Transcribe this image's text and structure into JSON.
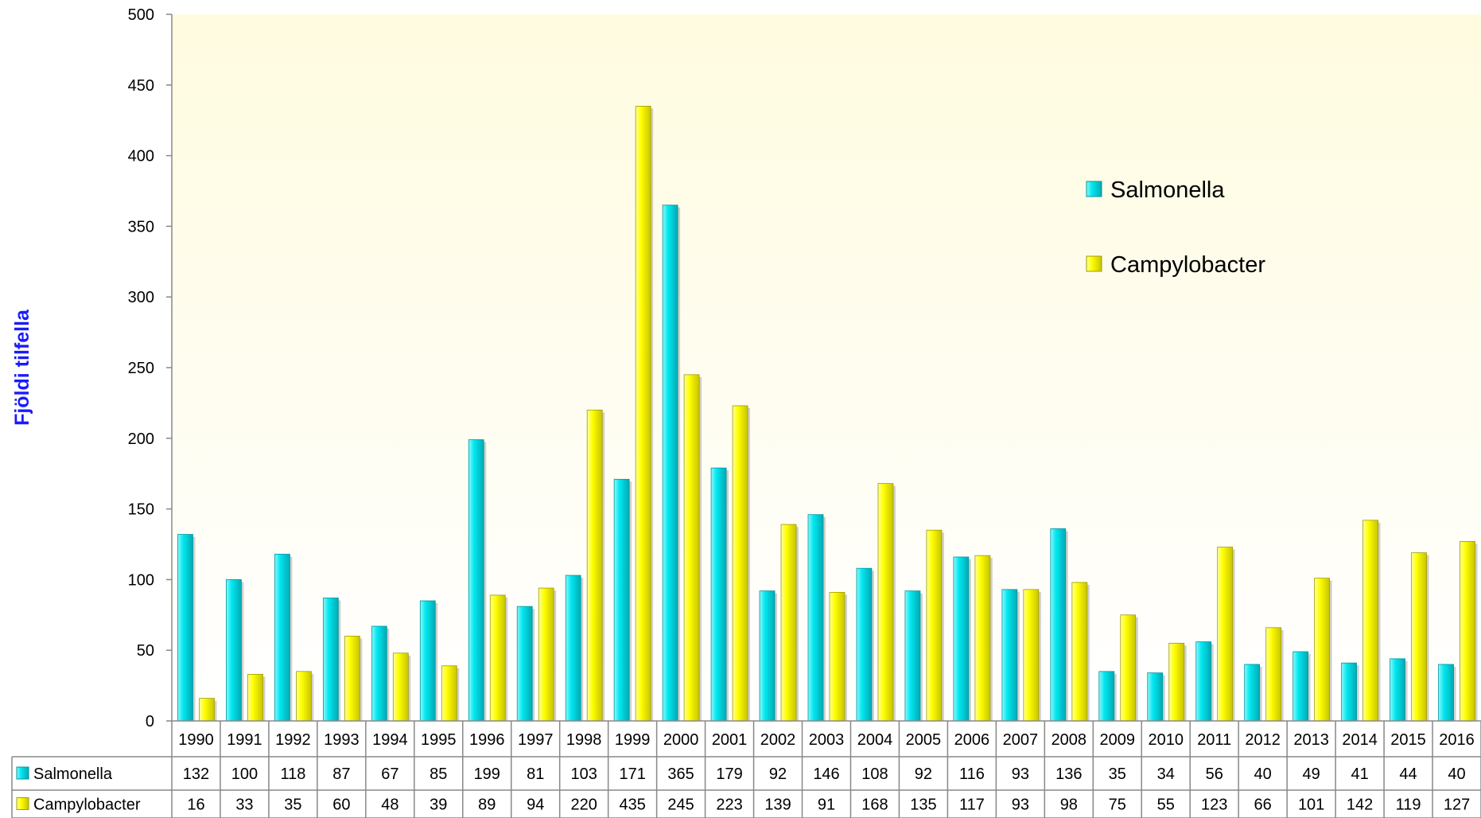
{
  "chart_data": {
    "type": "bar",
    "ylabel": "Fjöldi tilfella",
    "ylim": [
      0,
      500
    ],
    "yticks": [
      0,
      50,
      100,
      150,
      200,
      250,
      300,
      350,
      400,
      450,
      500
    ],
    "categories": [
      "1990",
      "1991",
      "1992",
      "1993",
      "1994",
      "1995",
      "1996",
      "1997",
      "1998",
      "1999",
      "2000",
      "2001",
      "2002",
      "2003",
      "2004",
      "2005",
      "2006",
      "2007",
      "2008",
      "2009",
      "2010",
      "2011",
      "2012",
      "2013",
      "2014",
      "2015",
      "2016"
    ],
    "series": [
      {
        "name": "Salmonella",
        "color": "#00e5ee",
        "values": [
          132,
          100,
          118,
          87,
          67,
          85,
          199,
          81,
          103,
          171,
          365,
          179,
          92,
          146,
          108,
          92,
          116,
          93,
          136,
          35,
          34,
          56,
          40,
          49,
          41,
          44,
          40
        ]
      },
      {
        "name": "Campylobacter",
        "color": "#ffff00",
        "values": [
          16,
          33,
          35,
          60,
          48,
          39,
          89,
          94,
          220,
          435,
          245,
          223,
          139,
          91,
          168,
          135,
          117,
          93,
          98,
          75,
          55,
          123,
          66,
          101,
          142,
          119,
          127
        ]
      }
    ],
    "legend_position": "right",
    "data_table": true,
    "plot_background": "#fffde8"
  }
}
